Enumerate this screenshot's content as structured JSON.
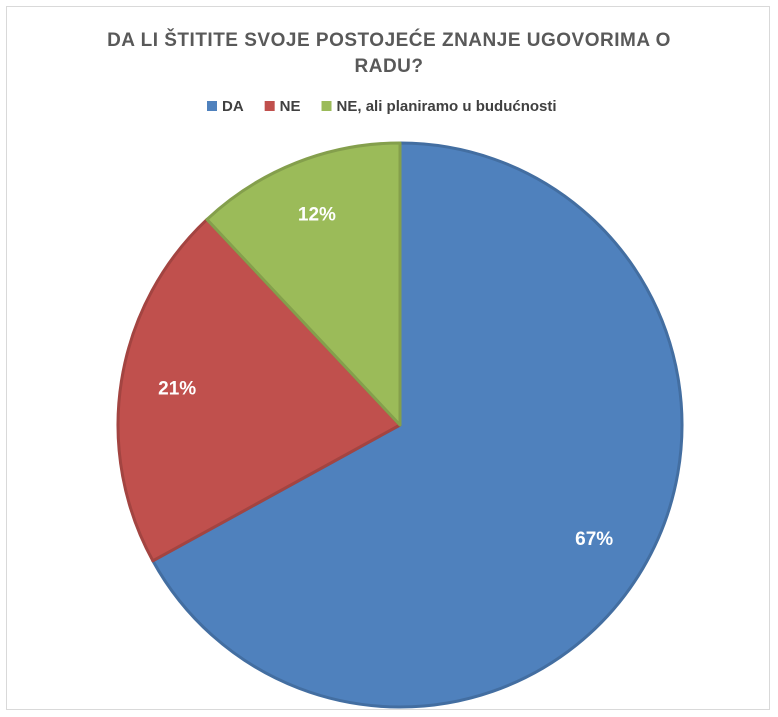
{
  "chart_data": {
    "type": "pie",
    "title": "DA LI ŠTITITE SVOJE POSTOJEĆE ZNANJE UGOVORIMA O RADU?",
    "categories": [
      "DA",
      "NE",
      "NE, ali planiramo u budućnosti"
    ],
    "values": [
      67,
      21,
      12
    ],
    "value_labels": [
      "67%",
      "21%",
      "12%"
    ],
    "colors": [
      "#4f81bd",
      "#c0504d",
      "#9bbb59"
    ],
    "legend": "top"
  }
}
